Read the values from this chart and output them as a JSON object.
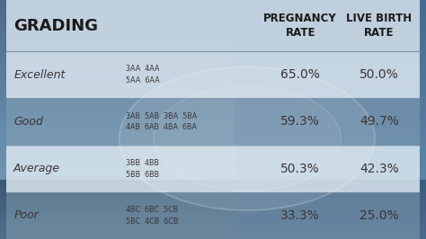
{
  "title": "GRADING",
  "col_pregnancy": "PREGNANCY\nRATE",
  "col_livebirth": "LIVE BIRTH\nRATE",
  "rows": [
    {
      "grade": "Excellent",
      "codes": "3AA  4AA\n5AA  6AA",
      "pregnancy": "65.0%",
      "livebirth": "50.0%"
    },
    {
      "grade": "Good",
      "codes": "3AB  5AB  3BA  5BA\n4AB  6AB  4BA  6BA",
      "pregnancy": "59.3%",
      "livebirth": "49.7%"
    },
    {
      "grade": "Average",
      "codes": "3BB  4BB\n5BB  6BB",
      "pregnancy": "50.3%",
      "livebirth": "42.3%"
    },
    {
      "grade": "Poor",
      "codes": "4BC  6BC  5CB\n5BC  4CB  6CB",
      "pregnancy": "33.3%",
      "livebirth": "25.0%"
    }
  ],
  "header_bg": [
    0.82,
    0.87,
    0.91,
    0.88
  ],
  "row_bg_light": [
    0.88,
    0.92,
    0.95,
    0.82
  ],
  "row_bg_dark": [
    0.55,
    0.65,
    0.72,
    0.45
  ],
  "text_color": "#3a3535",
  "header_text_color": "#1a1a1a",
  "bg_top": "#5a7a95",
  "bg_mid": "#6a8faa",
  "bg_bot": "#3a5570",
  "grade_fontsize": 9,
  "code_fontsize": 5.8,
  "rate_fontsize": 10,
  "header_fontsize": 8.5,
  "title_fontsize": 13,
  "fig_width": 4.74,
  "fig_height": 2.66,
  "dpi": 100
}
